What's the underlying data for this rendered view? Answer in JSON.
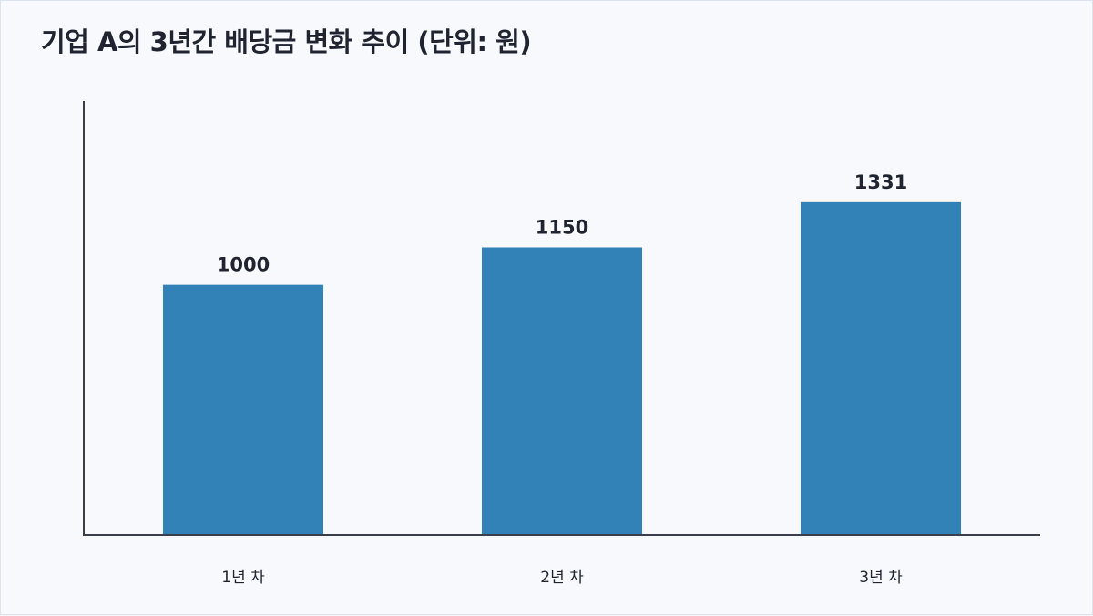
{
  "chart_data": {
    "type": "bar",
    "title": "기업 A의 3년간 배당금 변화 추이 (단위: 원)",
    "categories": [
      "1년 차",
      "2년 차",
      "3년 차"
    ],
    "values": [
      1000,
      1150,
      1331
    ],
    "xlabel": "",
    "ylabel": "",
    "ylim": [
      0,
      1735
    ],
    "grid": false,
    "legend": "none",
    "data_labels": true,
    "bar_color": "#3282b8",
    "axis_color": "#3a3f4b",
    "text_color": "#1f2430",
    "background_color": "#f7f9fc"
  }
}
